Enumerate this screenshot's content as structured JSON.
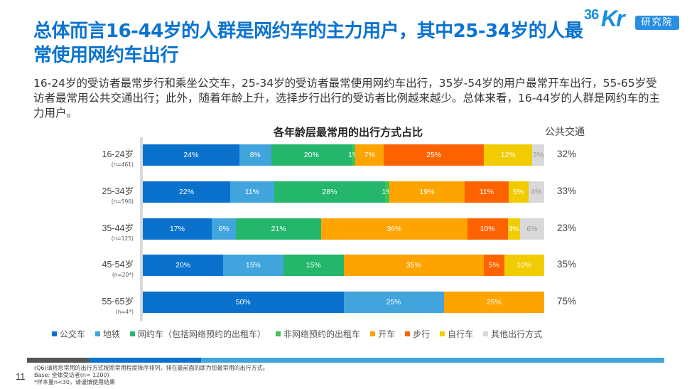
{
  "title": "总体而言16-44岁的人群是网约车的主力用户，其中25-34岁的人最常使用网约车出行",
  "logo": {
    "number": "36",
    "brand": "Kr",
    "badge": "研究院"
  },
  "description": "16-24岁的受访者最常步行和乘坐公交车，25-34岁的受访者最常使用网约车出行，35岁-54岁的用户最常开车出行，55-65岁受访者最常用公共交通出行；此外，随着年龄上升，选择步行出行的受访者比例越来越少。总体来看，16-44岁的人群是网约车的主力用户。",
  "right_column_header": "公共交通",
  "chart_data": {
    "type": "bar",
    "orientation": "horizontal",
    "stacked": true,
    "percent_stacked": true,
    "title": "各年龄层最常用的出行方式占比",
    "xlabel": "",
    "ylabel": "",
    "xlim": [
      0,
      100
    ],
    "grid": false,
    "legend_position": "bottom",
    "categories": [
      {
        "label": "16-24岁",
        "n": "(n=461)"
      },
      {
        "label": "25-34岁",
        "n": "(n=590)"
      },
      {
        "label": "35-44岁",
        "n": "(n=125)"
      },
      {
        "label": "45-54岁",
        "n": "(n=20*)"
      },
      {
        "label": "55-65岁",
        "n": "(n=4*)"
      }
    ],
    "series": [
      {
        "name": "公交车",
        "color": "#0a72cc",
        "label_color": "#ffffff",
        "values": [
          24,
          22,
          17,
          20,
          50
        ]
      },
      {
        "name": "地铁",
        "color": "#41a4dd",
        "label_color": "#ffffff",
        "values": [
          8,
          11,
          6,
          15,
          25
        ]
      },
      {
        "name": "网约车（包括网络预约的出租车）",
        "color": "#24b66b",
        "label_color": "#ffffff",
        "values": [
          20,
          28,
          21,
          15,
          0
        ]
      },
      {
        "name": "非网络预约的出租车",
        "color": "#3fc35a",
        "label_color": "#ffffff",
        "values": [
          1,
          1,
          0,
          0,
          0
        ]
      },
      {
        "name": "开车",
        "color": "#fda400",
        "label_color": "#ffffff",
        "values": [
          7,
          19,
          36,
          35,
          25
        ]
      },
      {
        "name": "步行",
        "color": "#fd6200",
        "label_color": "#ffffff",
        "values": [
          25,
          11,
          10,
          5,
          0
        ]
      },
      {
        "name": "自行车",
        "color": "#f1cc00",
        "label_color": "#ffffff",
        "values": [
          12,
          5,
          3,
          10,
          0
        ]
      },
      {
        "name": "其他出行方式",
        "color": "#d9d9d9",
        "label_color": "#9a9a9a",
        "values": [
          3,
          4,
          6,
          0,
          0
        ]
      }
    ],
    "public_transport_totals": [
      "32%",
      "33%",
      "23%",
      "35%",
      "75%"
    ]
  },
  "footer": {
    "page_number": "11",
    "notes": [
      "(Q6)请将您常用的出行方式按照常用程度降序排列，排在最前面的即为您最常用的出行方式。",
      "Base: 全体受访者(n= 1200)",
      "*样本量n<30，请谨慎使用结果"
    ]
  }
}
